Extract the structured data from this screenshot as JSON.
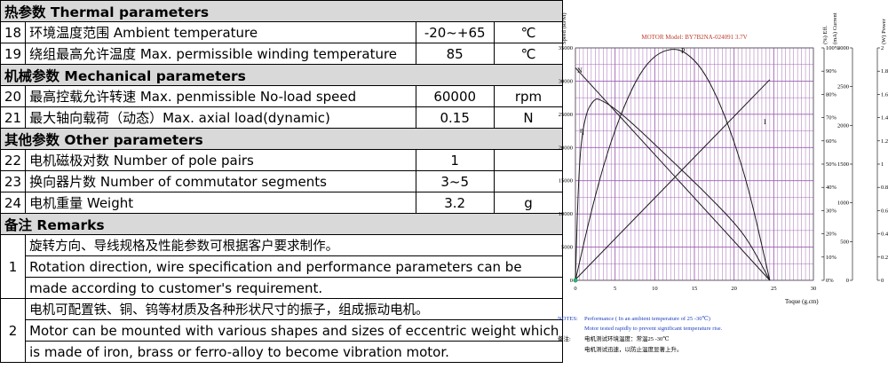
{
  "table": {
    "sections": [
      {
        "title": "热参数 Thermal parameters",
        "rows": [
          {
            "no": "18",
            "name": "环境温度范围 Ambient temperature",
            "value": "-20~+65",
            "unit": "℃"
          },
          {
            "no": "19",
            "name": "绕组最高允许温度  Max. permissible winding temperature",
            "value": "85",
            "unit": "℃"
          }
        ]
      },
      {
        "title": "机械参数 Mechanical parameters",
        "rows": [
          {
            "no": "20",
            "name": "最高控载允许转速 Max. penmissible No-load speed",
            "value": "60000",
            "unit": "rpm"
          },
          {
            "no": "21",
            "name": "最大轴向载荷（动态）Max. axial load(dynamic)",
            "value": "0.15",
            "unit": "N"
          }
        ]
      },
      {
        "title": "其他参数  Other parameters",
        "rows": [
          {
            "no": "22",
            "name": "电机磁极对数  Number of pole pairs",
            "value": "1",
            "unit": ""
          },
          {
            "no": "23",
            "name": "换向器片数  Number of commutator segments",
            "value": "3~5",
            "unit": ""
          },
          {
            "no": "24",
            "name": "电机重量 Weight",
            "value": "3.2",
            "unit": "g"
          }
        ]
      }
    ],
    "remarks_title": "备注 Remarks",
    "remarks": [
      {
        "no": "1",
        "lines": [
          "旋转方向、导线规格及性能参数可根据客户要求制作。",
          "Rotation direction, wire specification and performance parameters can be",
          "made according to customer's requirement."
        ]
      },
      {
        "no": "2",
        "lines": [
          "电机可配置铁、铜、钨等材质及各种形状尺寸的振子，组成振动电机。",
          "Motor can be mounted with various shapes and sizes of eccentric weight which",
          "is made of iron, brass or ferro-alloy to become vibration motor."
        ]
      }
    ]
  },
  "chart": {
    "title": "MOTOR Model: BY7B2NA-024091  3.7V",
    "axis_titles": {
      "speed": "Speed (RPM)",
      "eff": "(%) Eff.",
      "current": "(mA) Current",
      "power": "(W) Power"
    },
    "x_title": "Toque   (g.cm)",
    "x_ticks": [
      "0",
      "5",
      "10",
      "15",
      "20",
      "25",
      "30"
    ],
    "speed_ticks": [
      "0",
      "5000",
      "10000",
      "15000",
      "20000",
      "25000",
      "30000",
      "35000"
    ],
    "eff_ticks": [
      "0%",
      "10%",
      "20%",
      "30%",
      "40%",
      "50%",
      "60%",
      "70%",
      "80%",
      "90%",
      "100%"
    ],
    "current_ticks": [
      "0",
      "500",
      "1000",
      "1500",
      "2000",
      "2500",
      "3000"
    ],
    "power_ticks": [
      "0",
      "0.2",
      "0.4",
      "0.6",
      "0.8",
      "1",
      "1.2",
      "1.4",
      "1.6",
      "1.8",
      "2"
    ],
    "curve_labels": {
      "speed": "N",
      "eff": "η",
      "current": "I",
      "power": "P"
    },
    "notes_label": "NOTES:",
    "notes_line1": "Performance ( In an ambient temperature of 25 -30℃)",
    "notes_line2": "Motor tested rapidly to prevent significant temperature rise.",
    "cn_label": "备注:",
    "cn_line1": "电机测试环境温度：常温25 -30℃",
    "cn_line2": "电机测试迅速，以防止温度显著上升。",
    "colors": {
      "grid": "#9b5fb0",
      "curve": "#1a1a1a",
      "title": "#c0392b",
      "notes": "#1f3fbf"
    }
  },
  "chart_data": {
    "type": "line",
    "title": "MOTOR Model: BY7B2NA-024091  3.7V",
    "xlabel": "Toque   (g.cm)",
    "xlim": [
      0,
      30
    ],
    "series": [
      {
        "name": "N",
        "axis": "speed",
        "ylim": [
          0,
          35000
        ],
        "x": [
          0,
          24.5
        ],
        "y": [
          32000,
          0
        ]
      },
      {
        "name": "I",
        "axis": "current",
        "ylim": [
          0,
          3000
        ],
        "x": [
          0,
          24.5
        ],
        "y": [
          10,
          2590
        ]
      },
      {
        "name": "P",
        "axis": "power",
        "ylim": [
          0,
          2
        ],
        "x": [
          0,
          2,
          4,
          6,
          8,
          10,
          12.25,
          14,
          16,
          18,
          20,
          22,
          24.5
        ],
        "y": [
          0,
          0.6,
          1.1,
          1.48,
          1.77,
          1.94,
          2.0,
          1.96,
          1.82,
          1.56,
          1.2,
          0.75,
          0
        ]
      },
      {
        "name": "η",
        "axis": "eff",
        "ylim": [
          0,
          100
        ],
        "x": [
          0,
          0.3,
          0.6,
          1,
          1.5,
          2,
          2.5,
          3,
          5,
          8,
          12,
          16,
          20,
          22,
          24.5
        ],
        "y": [
          0,
          35,
          55,
          66,
          73,
          76,
          78,
          78,
          74,
          65,
          52,
          39,
          25,
          16,
          0
        ]
      }
    ]
  }
}
